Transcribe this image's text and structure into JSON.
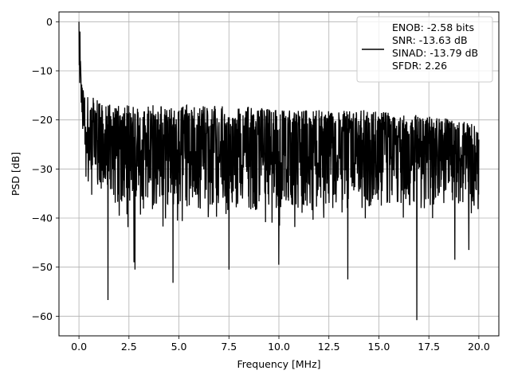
{
  "chart_data": {
    "type": "line",
    "xlabel": "Frequency [MHz]",
    "ylabel": "PSD [dB]",
    "xlim": [
      -1.0,
      21.0
    ],
    "ylim": [
      -64,
      2
    ],
    "x_ticks": [
      0.0,
      2.5,
      5.0,
      7.5,
      10.0,
      12.5,
      15.0,
      17.5,
      20.0
    ],
    "x_tick_labels": [
      "0.0",
      "2.5",
      "5.0",
      "7.5",
      "10.0",
      "12.5",
      "15.0",
      "17.5",
      "20.0"
    ],
    "y_ticks": [
      0,
      -10,
      -20,
      -30,
      -40,
      -50,
      -60
    ],
    "y_tick_labels": [
      "0",
      "−10",
      "−20",
      "−30",
      "−40",
      "−50",
      "−60"
    ],
    "grid": true,
    "legend_position": "top-right",
    "legend": {
      "lines": [
        "ENOB: -2.58 bits",
        "SNR: -13.63 dB",
        "SINAD: -13.79 dB",
        "SFDR: 2.26"
      ]
    },
    "series": [
      {
        "color": "#000000",
        "envelope": {
          "x": [
            0.0,
            0.05,
            0.1,
            0.2,
            0.3,
            0.5,
            1.0,
            2.0,
            3.0,
            4.0,
            5.0,
            6.0,
            7.0,
            8.0,
            9.0,
            10.0,
            11.0,
            12.0,
            13.0,
            14.0,
            15.0,
            16.0,
            17.0,
            18.0,
            19.0,
            20.0
          ],
          "upper": [
            0,
            -7,
            -10,
            -13,
            -14,
            -15,
            -16,
            -17,
            -17,
            -17,
            -17,
            -17,
            -17,
            -17,
            -17.5,
            -18,
            -18,
            -18,
            -18,
            -18,
            -18,
            -19,
            -19,
            -19.5,
            -20,
            -21
          ],
          "mid": [
            -3,
            -10,
            -14,
            -18,
            -20,
            -22,
            -24,
            -26,
            -26,
            -26,
            -26,
            -26,
            -26,
            -26,
            -26,
            -26,
            -26,
            -27,
            -27,
            -27,
            -27,
            -27,
            -27,
            -27,
            -27,
            -27
          ],
          "lower": [
            -10,
            -16,
            -20,
            -25,
            -28,
            -32,
            -35,
            -38,
            -38,
            -38,
            -38,
            -38,
            -38,
            -38,
            -38,
            -38,
            -38,
            -38,
            -38,
            -38,
            -38,
            -38,
            -38,
            -38,
            -38,
            -38
          ]
        },
        "spikes": [
          {
            "x": 0.0,
            "y": 0
          },
          {
            "x": 0.05,
            "y": -2
          },
          {
            "x": 0.08,
            "y": -8
          },
          {
            "x": 1.45,
            "y": -56.7
          },
          {
            "x": 2.75,
            "y": -49
          },
          {
            "x": 2.8,
            "y": -50.5
          },
          {
            "x": 4.7,
            "y": -53.2
          },
          {
            "x": 7.5,
            "y": -50.5
          },
          {
            "x": 10.0,
            "y": -49.5
          },
          {
            "x": 13.45,
            "y": -52.5
          },
          {
            "x": 16.9,
            "y": -60.8
          },
          {
            "x": 18.8,
            "y": -48.5
          },
          {
            "x": 19.5,
            "y": -46.5
          }
        ],
        "points": 1600
      }
    ]
  }
}
